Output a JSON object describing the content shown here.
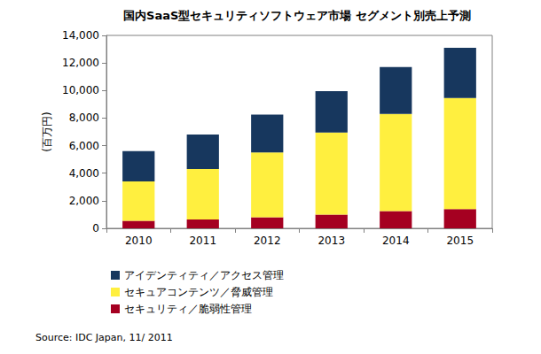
{
  "chart_data": {
    "type": "bar",
    "title": "国内SaaS型セキュリティソフトウェア市場 セグメント別売上予測",
    "y_label": "(百万円)",
    "categories": [
      "2010",
      "2011",
      "2012",
      "2013",
      "2014",
      "2015"
    ],
    "series": [
      {
        "name": "セキュリティ／脆弱性管理",
        "color": "#a50021",
        "values": [
          550,
          650,
          800,
          1000,
          1250,
          1400
        ]
      },
      {
        "name": "セキュアコンテンツ／脅威管理",
        "color": "#ffef3f",
        "values": [
          2850,
          3650,
          4700,
          5950,
          7050,
          8050
        ]
      },
      {
        "name": "アイデンティティ／アクセス管理",
        "color": "#17375e",
        "values": [
          2200,
          2500,
          2750,
          3000,
          3400,
          3650
        ]
      }
    ],
    "stacked": true,
    "ylim": [
      0,
      14000
    ],
    "yticks": [
      0,
      {
        "value": 2000,
        "label": "2,000"
      },
      {
        "value": 4000,
        "label": "4,000"
      },
      {
        "value": 6000,
        "label": "6,000"
      },
      {
        "value": 8000,
        "label": "8,000"
      },
      {
        "value": 10000,
        "label": "10,000"
      },
      {
        "value": 12000,
        "label": "12,000"
      },
      {
        "value": 14000,
        "label": "14,000"
      }
    ],
    "grid": false,
    "legend": "bottom",
    "annotations": [
      "Source: IDC Japan, 11/ 2011"
    ]
  }
}
